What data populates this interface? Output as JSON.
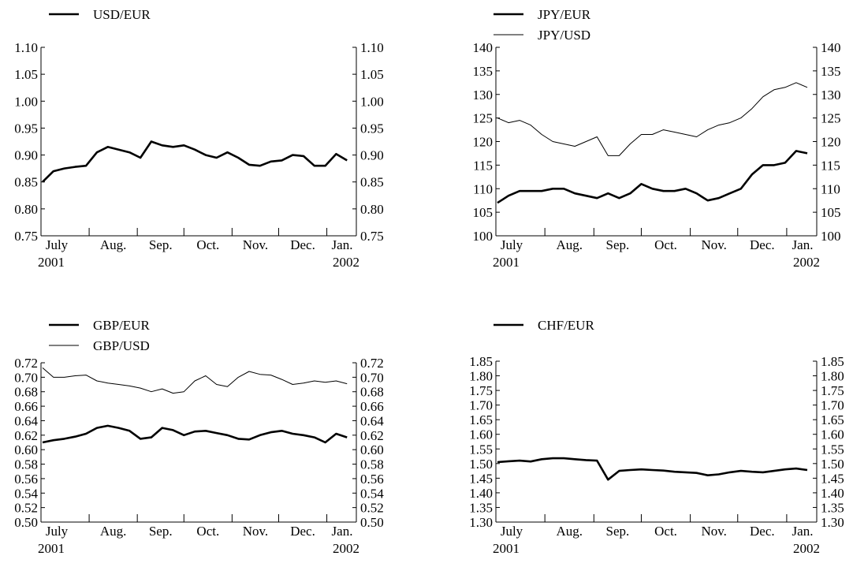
{
  "chart_data": [
    {
      "type": "line",
      "x": [
        "2001-07-02",
        "2001-07-09",
        "2001-07-16",
        "2001-07-23",
        "2001-07-30",
        "2001-08-06",
        "2001-08-13",
        "2001-08-20",
        "2001-08-27",
        "2001-09-03",
        "2001-09-10",
        "2001-09-17",
        "2001-09-24",
        "2001-10-01",
        "2001-10-08",
        "2001-10-15",
        "2001-10-22",
        "2001-10-29",
        "2001-11-05",
        "2001-11-12",
        "2001-11-19",
        "2001-11-26",
        "2001-12-03",
        "2001-12-10",
        "2001-12-17",
        "2001-12-24",
        "2001-12-31",
        "2002-01-07",
        "2002-01-14"
      ],
      "series": [
        {
          "name": "USD/EUR",
          "weight": "thick",
          "values": [
            0.85,
            0.87,
            0.875,
            0.878,
            0.88,
            0.905,
            0.915,
            0.91,
            0.905,
            0.895,
            0.925,
            0.918,
            0.915,
            0.918,
            0.91,
            0.9,
            0.895,
            0.905,
            0.895,
            0.882,
            0.88,
            0.888,
            0.89,
            0.9,
            0.898,
            0.88,
            0.88,
            0.902,
            0.89
          ]
        }
      ],
      "month_labels": [
        "July",
        "Aug.",
        "Sep.",
        "Oct.",
        "Nov.",
        "Dec.",
        "Jan."
      ],
      "year_labels": [
        "2001",
        "2002"
      ],
      "yticks": [
        "0.75",
        "0.80",
        "0.85",
        "0.90",
        "0.95",
        "1.00",
        "1.05",
        "1.10"
      ],
      "ylim": [
        0.75,
        1.1
      ]
    },
    {
      "type": "line",
      "x": [
        "2001-07-02",
        "2001-07-09",
        "2001-07-16",
        "2001-07-23",
        "2001-07-30",
        "2001-08-06",
        "2001-08-13",
        "2001-08-20",
        "2001-08-27",
        "2001-09-03",
        "2001-09-10",
        "2001-09-17",
        "2001-09-24",
        "2001-10-01",
        "2001-10-08",
        "2001-10-15",
        "2001-10-22",
        "2001-10-29",
        "2001-11-05",
        "2001-11-12",
        "2001-11-19",
        "2001-11-26",
        "2001-12-03",
        "2001-12-10",
        "2001-12-17",
        "2001-12-24",
        "2001-12-31",
        "2002-01-07",
        "2002-01-14"
      ],
      "series": [
        {
          "name": "JPY/EUR",
          "weight": "thick",
          "values": [
            107,
            108.5,
            109.5,
            109.5,
            109.5,
            110,
            110,
            109,
            108.5,
            108,
            109,
            108,
            109,
            111,
            110,
            109.5,
            109.5,
            110,
            109,
            107.5,
            108,
            109,
            110,
            113,
            115,
            115,
            115.5,
            118,
            117.5
          ]
        },
        {
          "name": "JPY/USD",
          "weight": "thin",
          "values": [
            125,
            124,
            124.5,
            123.5,
            121.5,
            120,
            119.5,
            119,
            120,
            121,
            117,
            117,
            119.5,
            121.5,
            121.5,
            122.5,
            122,
            121.5,
            121,
            122.5,
            123.5,
            124,
            125,
            127,
            129.5,
            131,
            131.5,
            132.5,
            131.5
          ]
        }
      ],
      "month_labels": [
        "July",
        "Aug.",
        "Sep.",
        "Oct.",
        "Nov.",
        "Dec.",
        "Jan."
      ],
      "year_labels": [
        "2001",
        "2002"
      ],
      "yticks": [
        "100",
        "105",
        "110",
        "115",
        "120",
        "125",
        "130",
        "135",
        "140"
      ],
      "ylim": [
        100,
        140
      ]
    },
    {
      "type": "line",
      "x": [
        "2001-07-02",
        "2001-07-09",
        "2001-07-16",
        "2001-07-23",
        "2001-07-30",
        "2001-08-06",
        "2001-08-13",
        "2001-08-20",
        "2001-08-27",
        "2001-09-03",
        "2001-09-10",
        "2001-09-17",
        "2001-09-24",
        "2001-10-01",
        "2001-10-08",
        "2001-10-15",
        "2001-10-22",
        "2001-10-29",
        "2001-11-05",
        "2001-11-12",
        "2001-11-19",
        "2001-11-26",
        "2001-12-03",
        "2001-12-10",
        "2001-12-17",
        "2001-12-24",
        "2001-12-31",
        "2002-01-07",
        "2002-01-14"
      ],
      "series": [
        {
          "name": "GBP/EUR",
          "weight": "thick",
          "values": [
            0.61,
            0.613,
            0.615,
            0.618,
            0.622,
            0.63,
            0.633,
            0.63,
            0.626,
            0.615,
            0.617,
            0.63,
            0.627,
            0.62,
            0.625,
            0.626,
            0.623,
            0.62,
            0.615,
            0.614,
            0.62,
            0.624,
            0.626,
            0.622,
            0.62,
            0.617,
            0.61,
            0.622,
            0.617
          ]
        },
        {
          "name": "GBP/USD",
          "weight": "thin",
          "values": [
            0.713,
            0.7,
            0.7,
            0.702,
            0.703,
            0.695,
            0.692,
            0.69,
            0.688,
            0.685,
            0.68,
            0.684,
            0.678,
            0.68,
            0.695,
            0.702,
            0.69,
            0.687,
            0.7,
            0.708,
            0.704,
            0.703,
            0.697,
            0.69,
            0.692,
            0.695,
            0.693,
            0.695,
            0.691
          ]
        }
      ],
      "month_labels": [
        "July",
        "Aug.",
        "Sep.",
        "Oct.",
        "Nov.",
        "Dec.",
        "Jan."
      ],
      "year_labels": [
        "2001",
        "2002"
      ],
      "yticks": [
        "0.50",
        "0.52",
        "0.54",
        "0.56",
        "0.58",
        "0.60",
        "0.62",
        "0.64",
        "0.66",
        "0.68",
        "0.70",
        "0.72"
      ],
      "ylim": [
        0.5,
        0.72
      ]
    },
    {
      "type": "line",
      "x": [
        "2001-07-02",
        "2001-07-09",
        "2001-07-16",
        "2001-07-23",
        "2001-07-30",
        "2001-08-06",
        "2001-08-13",
        "2001-08-20",
        "2001-08-27",
        "2001-09-03",
        "2001-09-10",
        "2001-09-17",
        "2001-09-24",
        "2001-10-01",
        "2001-10-08",
        "2001-10-15",
        "2001-10-22",
        "2001-10-29",
        "2001-11-05",
        "2001-11-12",
        "2001-11-19",
        "2001-11-26",
        "2001-12-03",
        "2001-12-10",
        "2001-12-17",
        "2001-12-24",
        "2001-12-31",
        "2002-01-07",
        "2002-01-14"
      ],
      "series": [
        {
          "name": "CHF/EUR",
          "weight": "thick",
          "values": [
            1.505,
            1.508,
            1.51,
            1.507,
            1.515,
            1.518,
            1.518,
            1.515,
            1.512,
            1.51,
            1.445,
            1.475,
            1.478,
            1.48,
            1.478,
            1.476,
            1.472,
            1.47,
            1.468,
            1.46,
            1.463,
            1.47,
            1.475,
            1.472,
            1.47,
            1.475,
            1.48,
            1.483,
            1.478
          ]
        }
      ],
      "month_labels": [
        "July",
        "Aug.",
        "Sep.",
        "Oct.",
        "Nov.",
        "Dec.",
        "Jan."
      ],
      "year_labels": [
        "2001",
        "2002"
      ],
      "yticks": [
        "1.30",
        "1.35",
        "1.40",
        "1.45",
        "1.50",
        "1.55",
        "1.60",
        "1.65",
        "1.70",
        "1.75",
        "1.80",
        "1.85"
      ],
      "ylim": [
        1.3,
        1.85
      ]
    }
  ]
}
